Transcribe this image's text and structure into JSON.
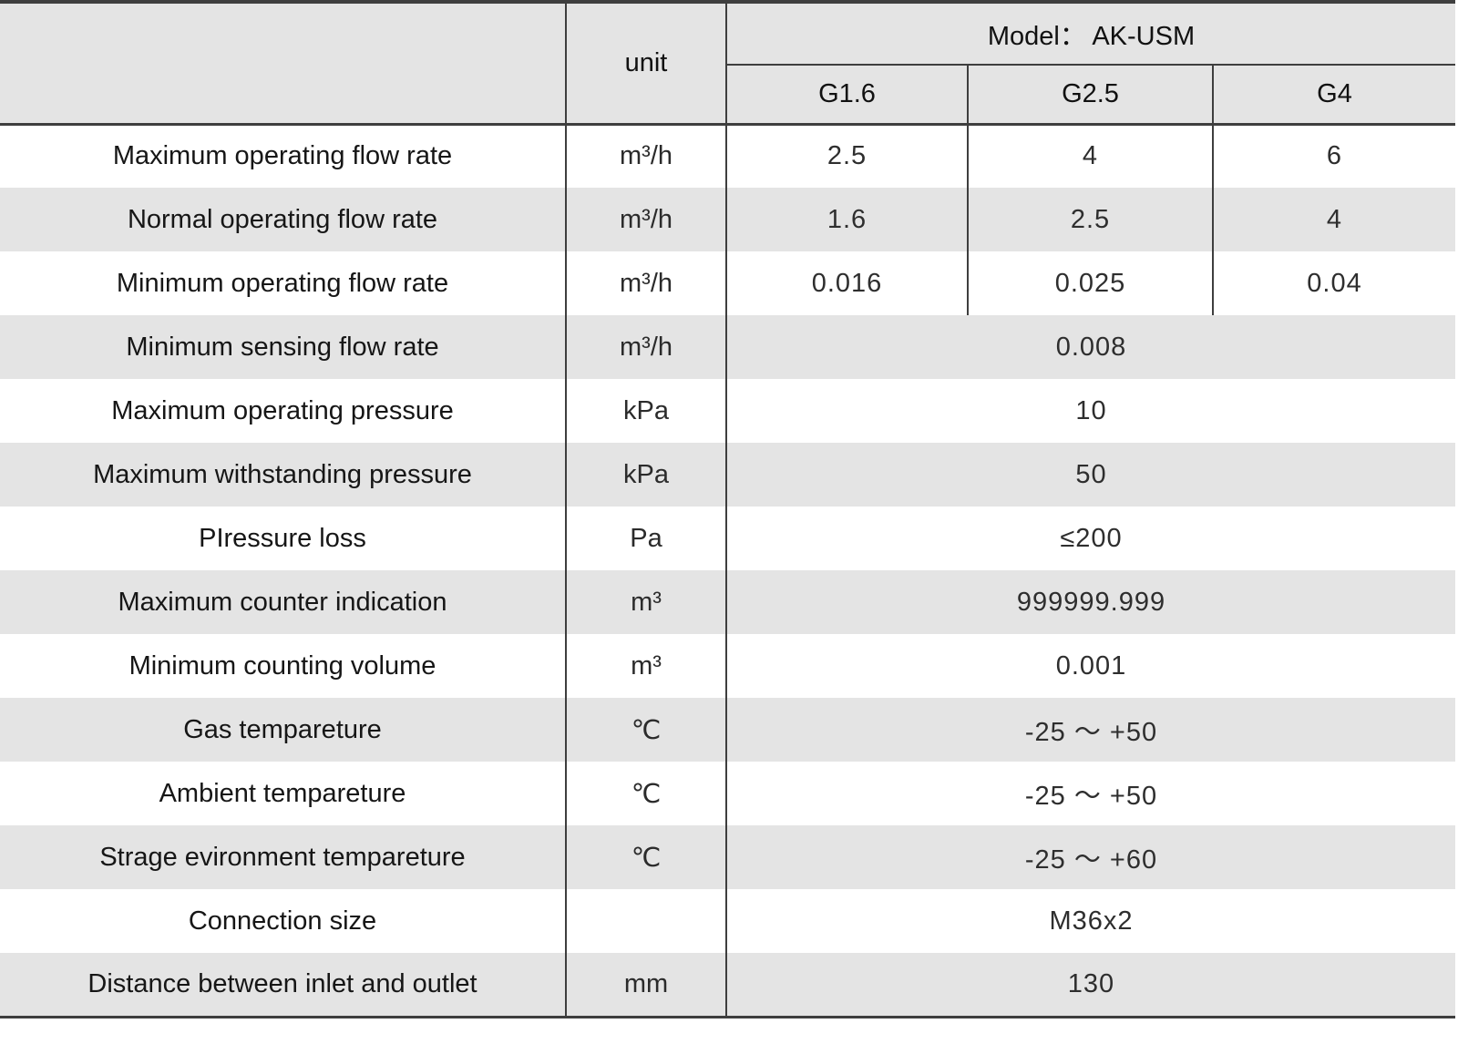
{
  "table": {
    "corner_label": "",
    "unit_header": "unit",
    "model_header": "Model：  AK-USM",
    "model_columns": [
      "G1.6",
      "G2.5",
      "G4"
    ],
    "rows": [
      {
        "label": "Maximum operating flow rate",
        "unit": "m³/h",
        "values": [
          "2.5",
          "4",
          "6"
        ]
      },
      {
        "label": "Normal operating flow rate",
        "unit": "m³/h",
        "values": [
          "1.6",
          "2.5",
          "4"
        ]
      },
      {
        "label": "Minimum operating flow rate",
        "unit": "m³/h",
        "values": [
          "0.016",
          "0.025",
          "0.04"
        ]
      },
      {
        "label": "Minimum sensing flow rate",
        "unit": "m³/h",
        "span": "0.008"
      },
      {
        "label": "Maximum operating pressure",
        "unit": "kPa",
        "span": "10"
      },
      {
        "label": "Maximum withstanding pressure",
        "unit": "kPa",
        "span": "50"
      },
      {
        "label": "PIressure loss",
        "unit": "Pa",
        "span": "≤200"
      },
      {
        "label": "Maximum counter indication",
        "unit": "m³",
        "span": "999999.999"
      },
      {
        "label": "Minimum counting volume",
        "unit": "m³",
        "span": "0.001"
      },
      {
        "label": "Gas tempareture",
        "unit": "℃",
        "span": "-25 ～ +50"
      },
      {
        "label": "Ambient tempareture",
        "unit": "℃",
        "span": "-25 ～ +50"
      },
      {
        "label": "Strage evironment tempareture",
        "unit": "℃",
        "span": "-25 ～ +60"
      },
      {
        "label": "Connection size",
        "unit": "",
        "span": "M36x2"
      },
      {
        "label": "Distance between inlet and outlet",
        "unit": "mm",
        "span": "130"
      }
    ],
    "colors": {
      "row_shade": "#e4e4e4",
      "border": "#3e3e3e",
      "text": "#1d1d1d"
    }
  }
}
